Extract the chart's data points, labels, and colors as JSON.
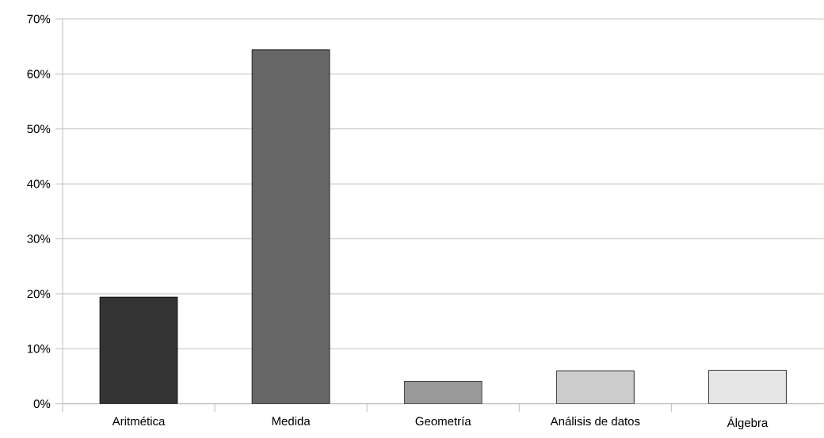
{
  "chart_data": {
    "type": "bar",
    "categories": [
      "Aritmética",
      "Medida",
      "Geometría",
      "Análisis de datos",
      "Álgebra"
    ],
    "values": [
      19.4,
      64.4,
      4.1,
      6.0,
      6.1
    ],
    "colors": [
      "#333333",
      "#666666",
      "#999999",
      "#cccccc",
      "#e6e6e6"
    ],
    "ylim": [
      0,
      70
    ],
    "yticks": [
      {
        "value": 0,
        "label": "0%"
      },
      {
        "value": 10,
        "label": "10%"
      },
      {
        "value": 20,
        "label": "20%"
      },
      {
        "value": 30,
        "label": "30%"
      },
      {
        "value": 40,
        "label": "40%"
      },
      {
        "value": 50,
        "label": "50%"
      },
      {
        "value": 60,
        "label": "60%"
      },
      {
        "value": 70,
        "label": "70%"
      }
    ],
    "grid": "y"
  }
}
